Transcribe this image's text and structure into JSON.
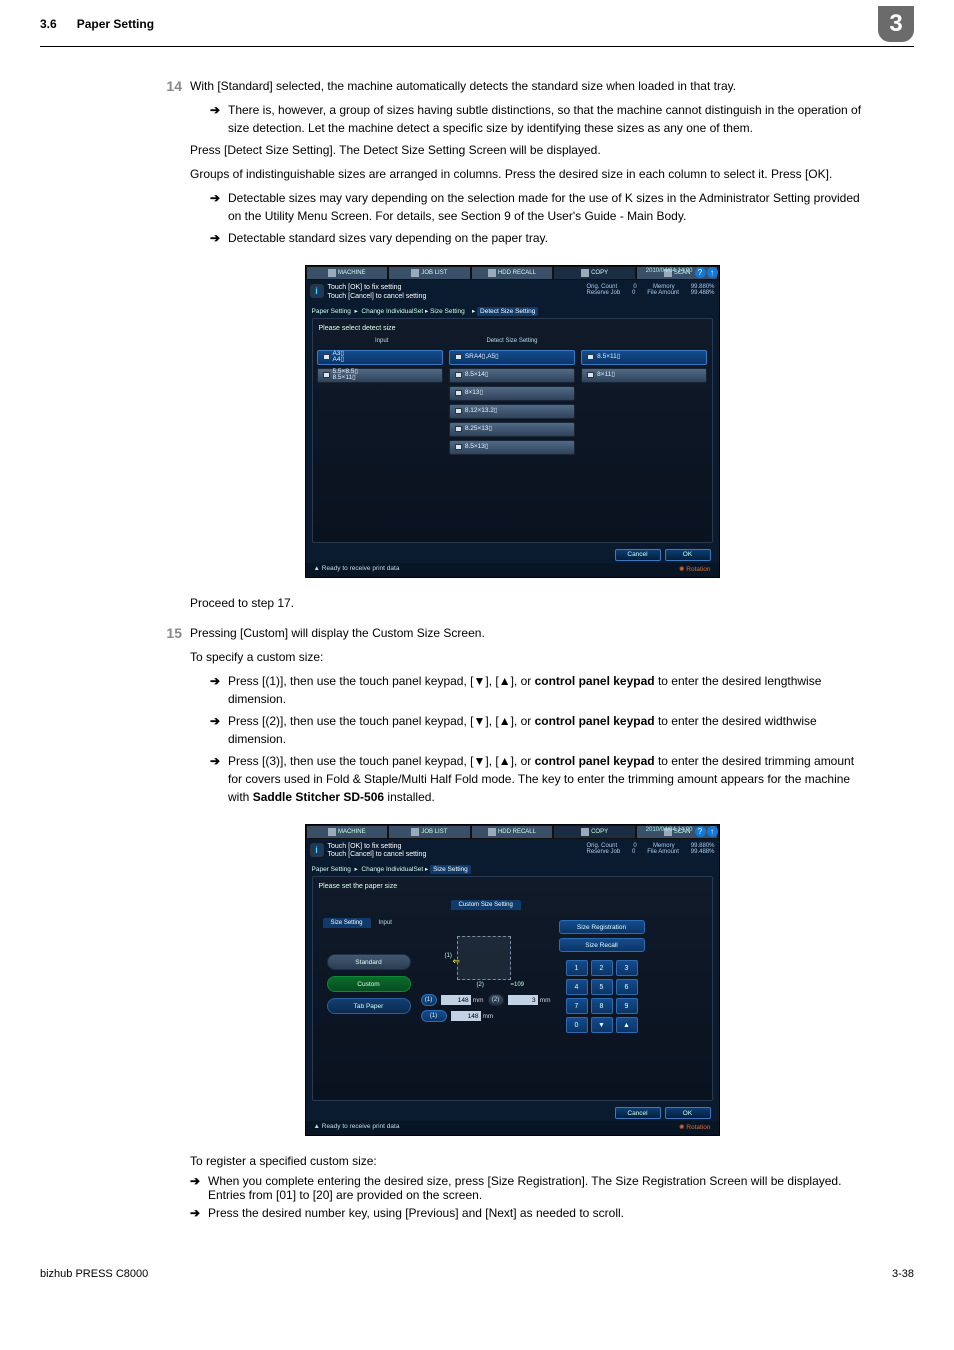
{
  "header": {
    "section_num": "3.6",
    "section_title": "Paper Setting",
    "chapter_num": "3"
  },
  "footer": {
    "model": "bizhub PRESS C8000",
    "page": "3-38"
  },
  "step14": {
    "num": "14",
    "intro": "With [Standard] selected, the machine automatically detects the standard size when loaded in that tray.",
    "sub1": "There is, however, a group of sizes having subtle distinctions, so that the machine cannot distinguish in the operation of size detection. Let the machine detect a specific size by identifying these sizes as any one of them.",
    "p1": "Press [Detect Size Setting]. The Detect Size Setting Screen will be displayed.",
    "p2": "Groups of indistinguishable sizes are arranged in columns. Press the desired size in each column to select it. Press [OK].",
    "sub2": "Detectable sizes may vary depending on the selection made for the use of K sizes in the Administrator Setting provided on the Utility Menu Screen. For details, see Section 9 of the User's Guide - Main Body.",
    "sub3": "Detectable standard sizes vary depending on the paper tray.",
    "proceed": "Proceed to step 17."
  },
  "step15": {
    "num": "15",
    "intro": "Pressing [Custom] will display the Custom Size Screen.",
    "p1": "To specify a custom size:",
    "sub1_a": "Press [(1)], then use the touch panel keypad, [▼], [▲], or ",
    "sub1_b": "control panel keypad",
    "sub1_c": " to enter the desired lengthwise dimension.",
    "sub2_a": "Press [(2)], then use the touch panel keypad, [▼], [▲], or ",
    "sub2_b": "control panel keypad",
    "sub2_c": " to enter the desired widthwise dimension.",
    "sub3_a": "Press [(3)], then use the touch panel keypad, [▼], [▲], or ",
    "sub3_b": "control panel keypad",
    "sub3_c": " to enter the desired trimming amount for covers used in Fold & Staple/Multi Half Fold mode. The key to enter the trimming amount appears for the machine with ",
    "sub3_d": "Saddle Stitcher SD-506",
    "sub3_e": " installed.",
    "p2": "To register a specified custom size:",
    "sub4": "When you complete entering the desired size, press [Size Registration]. The Size Registration Screen will be displayed. Entries from [01] to [20] are provided on the screen.",
    "sub5": "Press the desired number key, using [Previous] and [Next] as needed to scroll."
  },
  "panel_common": {
    "tabs": [
      "MACHINE",
      "JOB LIST",
      "HDD RECALL",
      "COPY",
      "SCAN"
    ],
    "datetime": "2010/04/04 14:00",
    "info1": "Touch [OK] to fix setting",
    "info2": "Touch [Cancel] to cancel setting",
    "orig_count_l": "Orig. Count",
    "orig_count_v": "0",
    "memory_l": "Memory",
    "memory_v": "99.880%",
    "reserve_l": "Reserve Job",
    "reserve_v": "0",
    "file_l": "File Amount",
    "file_v": "99.488%",
    "crumb1": "Paper Setting",
    "crumb2": "Change IndividualSet",
    "crumb3": "Size Setting",
    "cancel": "Cancel",
    "ok": "OK",
    "status": "Ready to receive print data",
    "rotation": "Rotation"
  },
  "panel1": {
    "crumb4": "Detect Size Setting",
    "subhead": "Please select detect size",
    "colhead_l": "Input",
    "colhead_r": "Detect Size Setting",
    "col1": [
      {
        "label": "A3▯\nA4▯",
        "sel": true
      },
      {
        "label": "5.5×8.5▯\n8.5×11▯",
        "sel": false
      }
    ],
    "col2": [
      {
        "label": "SRA4▯,A5▯",
        "sel": true
      },
      {
        "label": "8.5×14▯",
        "sel": false
      },
      {
        "label": "8×13▯",
        "sel": false
      },
      {
        "label": "8.12×13.2▯",
        "sel": false
      },
      {
        "label": "8.25×13▯",
        "sel": false
      },
      {
        "label": "8.5×13▯",
        "sel": false
      }
    ],
    "col3": [
      {
        "label": "8.5×11▯",
        "sel": true
      },
      {
        "label": "8×11▯",
        "sel": false
      }
    ]
  },
  "panel2": {
    "crumb3b": "Size Setting",
    "subhead": "Please set the paper size",
    "left_tab1": "Size Setting",
    "left_tab2": "Input",
    "right_tab": "Custom Size Setting",
    "btn_std": "Standard",
    "btn_cus": "Custom",
    "btn_tab": "Tab Paper",
    "reg": "Size Registration",
    "recall": "Size Recall",
    "d_l1": "(1)",
    "d_l2": "(2)",
    "d_l2b": "=109",
    "f1_lab": "(1)",
    "f1_val": "148",
    "f1_unit": "mm",
    "f2_lab": "(2)",
    "f2_val": "3",
    "f2_unit": "mm",
    "f3_lab": "(1)",
    "f3_val": "148",
    "f3_unit": "mm",
    "kp": [
      "1",
      "2",
      "3",
      "4",
      "5",
      "6",
      "7",
      "8",
      "9",
      "0",
      "▼",
      "▲"
    ]
  },
  "colors": {
    "panel_bg": "#0a1a2f",
    "highlight": "#1478d6",
    "green": "#0b6b2b",
    "gray_header_box": "#6b6b6b"
  }
}
